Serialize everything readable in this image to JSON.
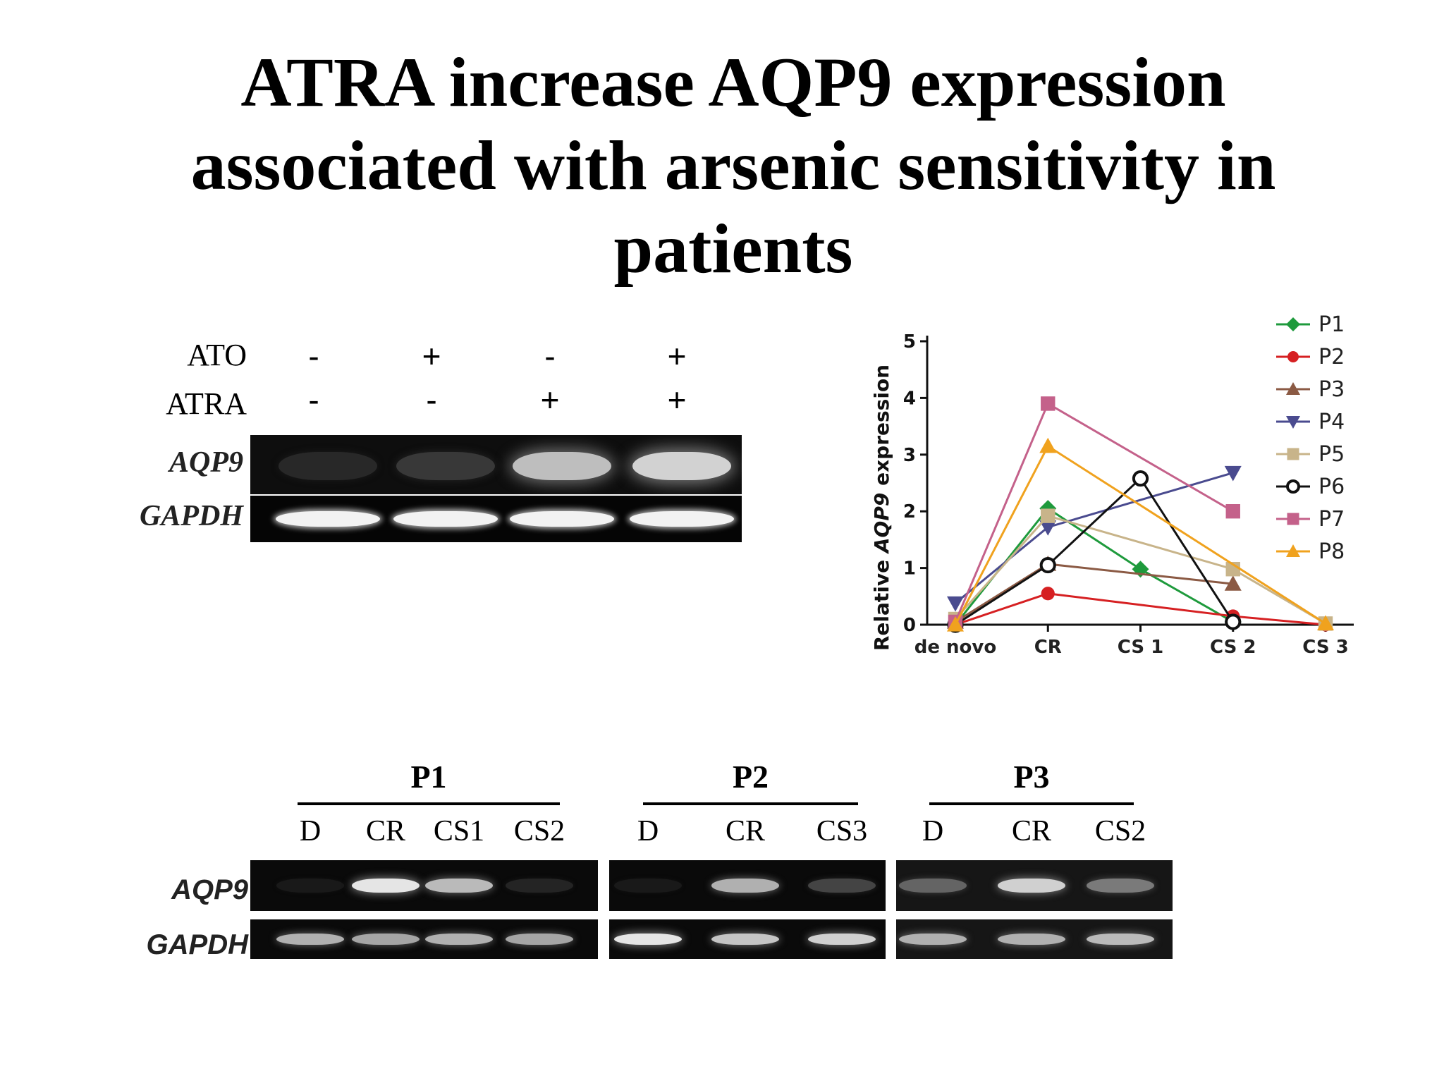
{
  "title": {
    "line1": "ATRA increase AQP9 expression",
    "line2": "associated with arsenic sensitivity in",
    "line3": "patients"
  },
  "gel_top": {
    "row_labels": [
      "ATO",
      "ATRA"
    ],
    "ato_signs": [
      "-",
      "+",
      "-",
      "+"
    ],
    "atra_signs": [
      "-",
      "-",
      "+",
      "+"
    ],
    "genes": [
      "AQP9",
      "GAPDH"
    ],
    "aqp9_band_intensity": [
      0.0,
      0.08,
      0.75,
      0.85
    ],
    "gapdh_band_intensity": [
      1.0,
      1.0,
      1.0,
      1.0
    ]
  },
  "chart_data": {
    "type": "line",
    "ylabel_prefix": "Relative ",
    "ylabel_gene": "AQP9",
    "ylabel_suffix": " expression",
    "categories": [
      "de novo",
      "CR",
      "CS 1",
      "CS 2",
      "CS 3"
    ],
    "yticks": [
      "0",
      "1",
      "2",
      "3",
      "4",
      "5"
    ],
    "ylim": [
      0,
      5
    ],
    "legend_position": "top-right",
    "series": [
      {
        "name": "P1",
        "color": "#1e9a3c",
        "marker": "diamond",
        "points": [
          [
            0,
            0
          ],
          [
            1,
            2.05
          ],
          [
            2,
            0.98
          ],
          [
            3,
            0.05
          ]
        ]
      },
      {
        "name": "P2",
        "color": "#d62022",
        "marker": "circle",
        "points": [
          [
            0,
            0
          ],
          [
            1,
            0.55
          ],
          [
            3,
            0.15
          ],
          [
            4,
            0
          ]
        ]
      },
      {
        "name": "P3",
        "color": "#8b5a44",
        "marker": "triangle-up",
        "points": [
          [
            0,
            0.05
          ],
          [
            1,
            1.07
          ],
          [
            3,
            0.72
          ]
        ]
      },
      {
        "name": "P4",
        "color": "#4a4b8f",
        "marker": "triangle-down",
        "points": [
          [
            0,
            0.38
          ],
          [
            1,
            1.72
          ],
          [
            3,
            2.68
          ]
        ]
      },
      {
        "name": "P5",
        "color": "#c8b48a",
        "marker": "square",
        "points": [
          [
            0,
            0.1
          ],
          [
            1,
            1.92
          ],
          [
            3,
            0.98
          ],
          [
            4,
            0.02
          ]
        ]
      },
      {
        "name": "P6",
        "color": "#111111",
        "marker": "circle-open",
        "points": [
          [
            0,
            0
          ],
          [
            1,
            1.05
          ],
          [
            2,
            2.58
          ],
          [
            3,
            0.05
          ]
        ]
      },
      {
        "name": "P7",
        "color": "#c4618a",
        "marker": "square",
        "points": [
          [
            0,
            0.05
          ],
          [
            1,
            3.9
          ],
          [
            3,
            2.0
          ]
        ]
      },
      {
        "name": "P8",
        "color": "#f0a21e",
        "marker": "triangle-up",
        "points": [
          [
            0,
            0
          ],
          [
            1,
            3.15
          ],
          [
            4,
            0.02
          ]
        ]
      }
    ]
  },
  "gel_bottom": {
    "genes": [
      "AQP9",
      "GAPDH"
    ],
    "groups": [
      {
        "name": "P1",
        "lanes": [
          "D",
          "CR",
          "CS1",
          "CS2"
        ],
        "aqp9": [
          0.0,
          0.95,
          0.75,
          0.05
        ],
        "gapdh": [
          0.7,
          0.65,
          0.7,
          0.65
        ]
      },
      {
        "name": "P2",
        "lanes": [
          "D",
          "CR",
          "CS3"
        ],
        "aqp9": [
          0.0,
          0.7,
          0.2
        ],
        "gapdh": [
          0.95,
          0.8,
          0.85
        ]
      },
      {
        "name": "P3",
        "lanes": [
          "D",
          "CR",
          "CS2"
        ],
        "aqp9": [
          0.35,
          0.85,
          0.45
        ],
        "gapdh": [
          0.7,
          0.7,
          0.75
        ]
      }
    ]
  }
}
